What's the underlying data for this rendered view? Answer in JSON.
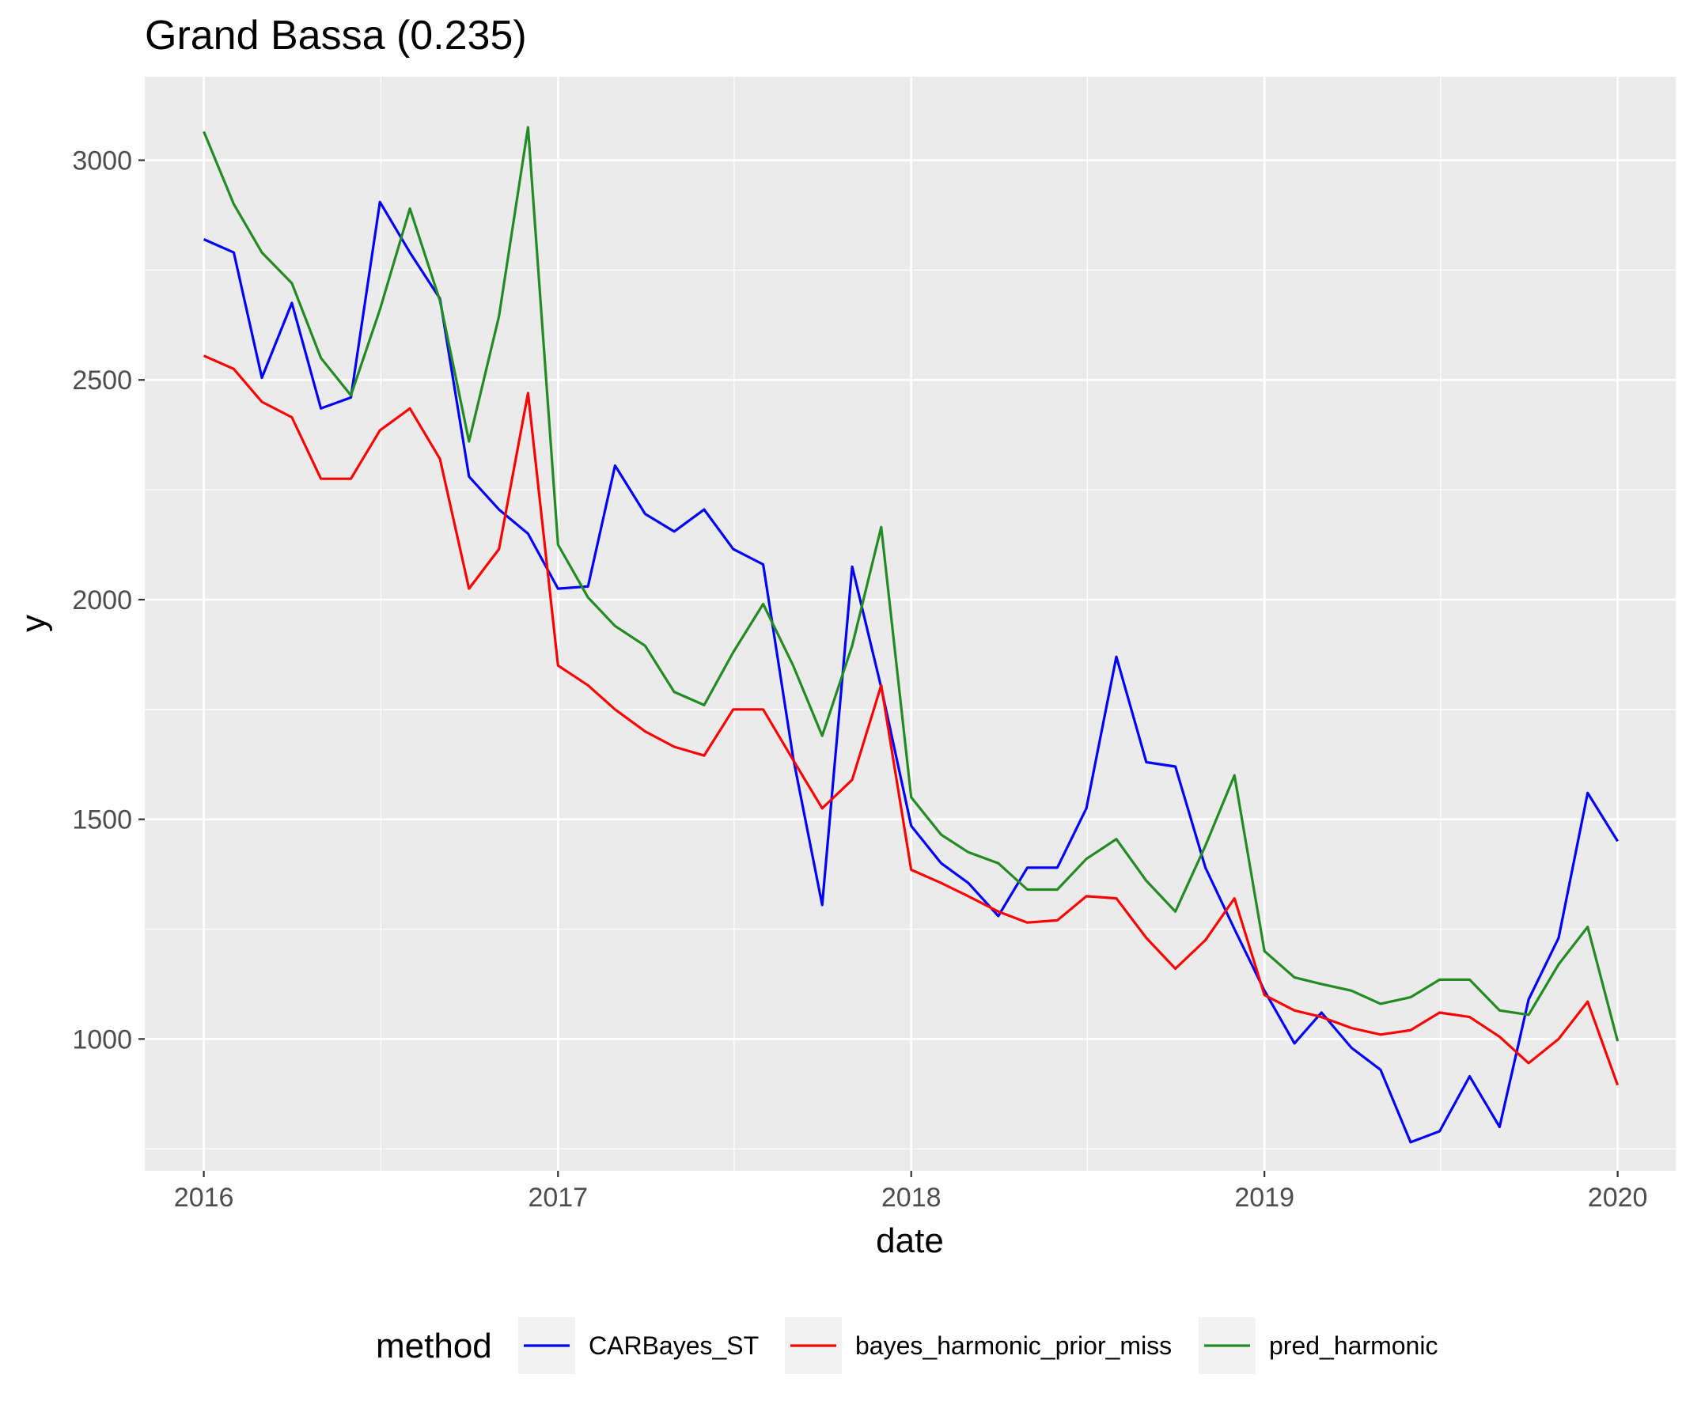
{
  "chart_data": {
    "type": "line",
    "title": "Grand Bassa (0.235)",
    "xlabel": "date",
    "ylabel": "y",
    "x_ticks": [
      "2016",
      "2017",
      "2018",
      "2019",
      "2020"
    ],
    "y_ticks": [
      1000,
      1500,
      2000,
      2500,
      3000
    ],
    "xlim": [
      "2015-11-01",
      "2020-03-01"
    ],
    "ylim": [
      700,
      3190
    ],
    "grid": true,
    "legend": {
      "title": "method",
      "position": "bottom"
    },
    "x": [
      "2016-01-01",
      "2016-02-01",
      "2016-03-01",
      "2016-04-01",
      "2016-05-01",
      "2016-06-01",
      "2016-07-01",
      "2016-08-01",
      "2016-09-01",
      "2016-10-01",
      "2016-11-01",
      "2016-12-01",
      "2017-01-01",
      "2017-02-01",
      "2017-03-01",
      "2017-04-01",
      "2017-05-01",
      "2017-06-01",
      "2017-07-01",
      "2017-08-01",
      "2017-09-01",
      "2017-10-01",
      "2017-11-01",
      "2017-12-01",
      "2018-01-01",
      "2018-02-01",
      "2018-03-01",
      "2018-04-01",
      "2018-05-01",
      "2018-06-01",
      "2018-07-01",
      "2018-08-01",
      "2018-09-01",
      "2018-10-01",
      "2018-11-01",
      "2018-12-01",
      "2019-01-01",
      "2019-02-01",
      "2019-03-01",
      "2019-04-01",
      "2019-05-01",
      "2019-06-01",
      "2019-07-01",
      "2019-08-01",
      "2019-09-01",
      "2019-10-01",
      "2019-11-01",
      "2019-12-01",
      "2020-01-01"
    ],
    "series": [
      {
        "name": "CARBayes_ST",
        "color": "#0000ff",
        "values": [
          2820,
          2790,
          2505,
          2675,
          2435,
          2460,
          2905,
          2790,
          2685,
          2280,
          2205,
          2150,
          2025,
          2030,
          2305,
          2195,
          2155,
          2205,
          2115,
          2080,
          1640,
          1305,
          2075,
          1800,
          1485,
          1400,
          1355,
          1280,
          1390,
          1390,
          1525,
          1870,
          1630,
          1620,
          1390,
          1250,
          1110,
          990,
          1060,
          980,
          930,
          765,
          790,
          915,
          800,
          1090,
          1230,
          1560,
          1450
        ]
      },
      {
        "name": "bayes_harmonic_prior_miss",
        "color": "#ff0000",
        "values": [
          2555,
          2525,
          2450,
          2415,
          2275,
          2275,
          2385,
          2435,
          2320,
          2025,
          2115,
          2470,
          1850,
          1805,
          1750,
          1700,
          1665,
          1645,
          1750,
          1750,
          1635,
          1525,
          1590,
          1805,
          1385,
          1355,
          1325,
          1290,
          1265,
          1270,
          1325,
          1320,
          1230,
          1160,
          1225,
          1320,
          1100,
          1065,
          1050,
          1025,
          1010,
          1020,
          1060,
          1050,
          1005,
          945,
          1000,
          1085,
          895
        ]
      },
      {
        "name": "pred_harmonic",
        "color": "#228b22",
        "values": [
          3065,
          2900,
          2790,
          2720,
          2550,
          2465,
          2660,
          2890,
          2680,
          2360,
          2645,
          3075,
          2125,
          2005,
          1940,
          1895,
          1790,
          1760,
          1880,
          1990,
          1850,
          1690,
          1895,
          2165,
          1550,
          1465,
          1425,
          1400,
          1340,
          1340,
          1410,
          1455,
          1360,
          1290,
          1440,
          1600,
          1200,
          1140,
          1125,
          1110,
          1080,
          1095,
          1135,
          1135,
          1065,
          1055,
          1170,
          1255,
          995
        ]
      }
    ]
  }
}
